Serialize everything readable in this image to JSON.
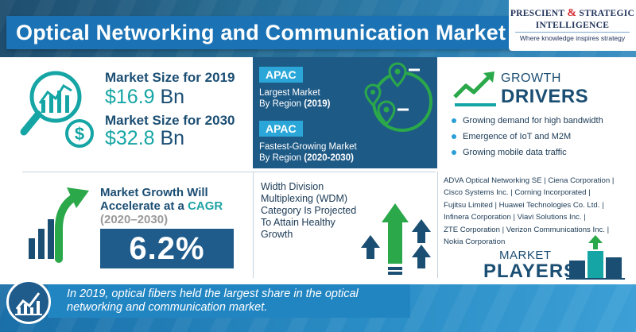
{
  "header": {
    "title": "Optical Networking and Communication Market",
    "logo": {
      "line1_a": "PRESCIENT",
      "line1_amp": "&",
      "line1_b": "STRATEGIC",
      "line2": "INTELLIGENCE",
      "tagline": "Where knowledge inspires strategy"
    }
  },
  "market_size": {
    "label_2019_prefix": "Market Size for ",
    "label_2019_year": "2019",
    "value_2019_number": "$16.9",
    "value_2019_unit": " Bn",
    "label_2030_prefix": "Market Size for ",
    "label_2030_year": "2030",
    "value_2030_number": "$32.8",
    "value_2030_unit": " Bn"
  },
  "apac": {
    "badge1": "APAC",
    "text1_line1": "Largest Market",
    "text1_line2_prefix": "By Region ",
    "text1_line2_bold": "(2019)",
    "badge2": "APAC",
    "text2_line1": "Fastest-Growing Market",
    "text2_line2_prefix": "By Region ",
    "text2_line2_bold": "(2020-2030)"
  },
  "growth_drivers": {
    "title_line1": "GROWTH",
    "title_line2": "DRIVERS",
    "items": [
      "Growing demand for high bandwidth",
      "Emergence of IoT and M2M",
      "Growing mobile data traffic"
    ]
  },
  "cagr": {
    "line1": "Market Growth Will",
    "line2_prefix": "Accelerate at a ",
    "line2_highlight": "CAGR",
    "line3": "(2020–2030)",
    "value": "6.2%"
  },
  "wdm": {
    "line1": "Width Division",
    "line2": "Multiplexing (WDM)",
    "line3": "Category Is Projected",
    "line4": "To Attain Healthy",
    "line5": "Growth"
  },
  "players": {
    "lines": [
      "ADVA Optical Networking SE | Ciena Corporation |",
      "Cisco Systems Inc. | Corning Incorporated |",
      "Fujitsu Limited | Huawei Technologies Co. Ltd. |",
      "Infinera Corporation | Viavi Solutions Inc. |",
      "ZTE Corporation | Verizon Communications Inc. |",
      "Nokia Corporation"
    ],
    "title_line1": "MARKET",
    "title_line2": "PLAYERS"
  },
  "footer": {
    "line1": "In 2019, optical fibers held the largest share in the optical",
    "line2": "networking and communication market."
  },
  "colors": {
    "navy": "#1b4e73",
    "teal": "#16a5a5",
    "green": "#2aa84a",
    "panel_blue": "#1e5a86",
    "accent_blue": "#2aa7d8"
  }
}
